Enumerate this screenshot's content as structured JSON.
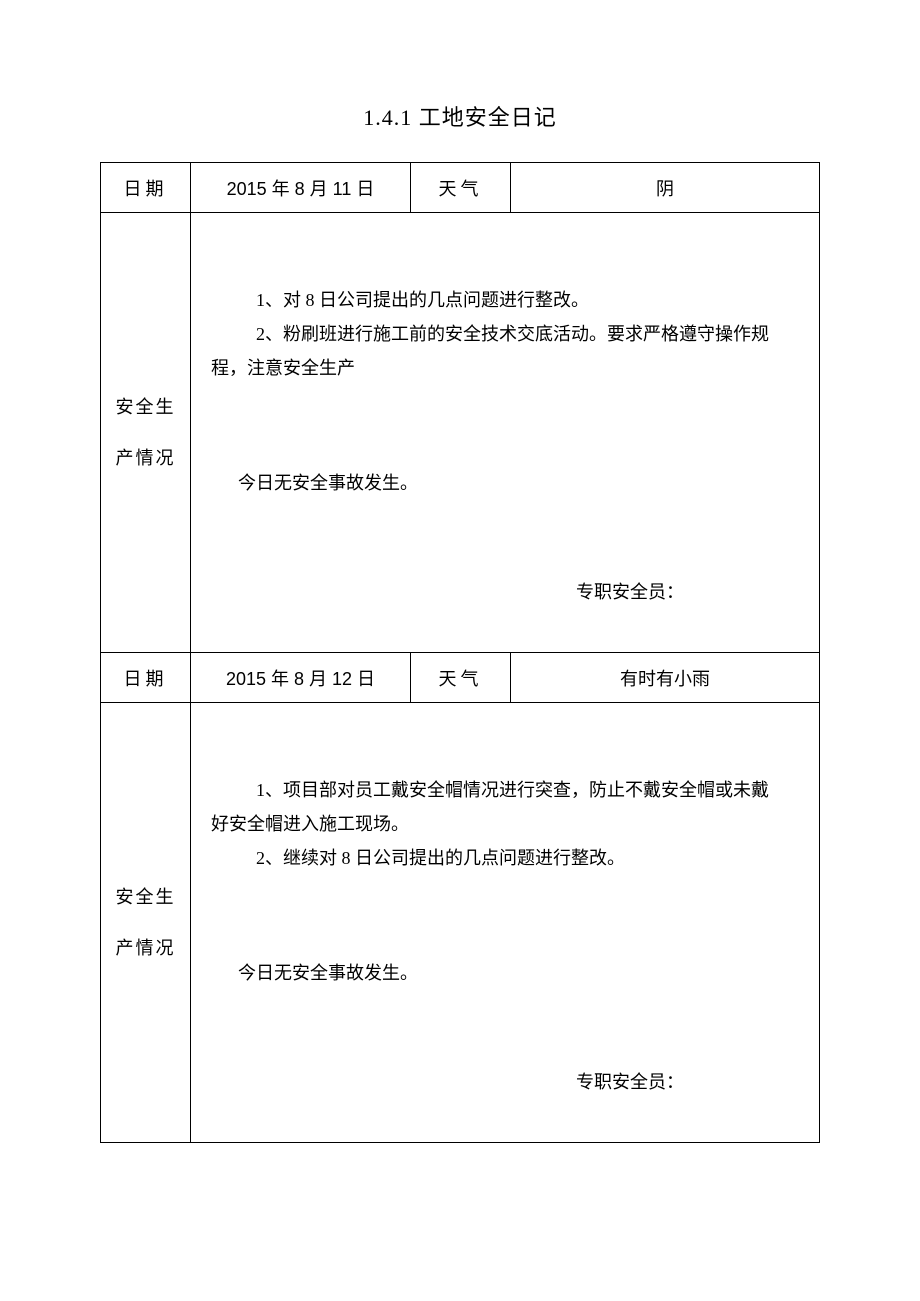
{
  "title": "1.4.1 工地安全日记",
  "entries": [
    {
      "date_label": "日期",
      "date_value": "2015 年 8 月 11 日",
      "weather_label": "天气",
      "weather_value": "阴",
      "section_label": "安全生产情况",
      "activity_line1": "1、对 8 日公司提出的几点问题进行整改。",
      "activity_line2": "2、粉刷班进行施工前的安全技术交底活动。要求严格遵守操作规",
      "activity_line3": "程，注意安全生产",
      "accident_status": "今日无安全事故发生。",
      "signature_label": "专职安全员："
    },
    {
      "date_label": "日期",
      "date_value": "2015 年 8 月 12 日",
      "weather_label": "天气",
      "weather_value": "有时有小雨",
      "section_label": "安全生产情况",
      "activity_line1": "1、项目部对员工戴安全帽情况进行突查，防止不戴安全帽或未戴",
      "activity_line2": "好安全帽进入施工现场。",
      "activity_line3": "2、继续对 8 日公司提出的几点问题进行整改。",
      "accident_status": "今日无安全事故发生。",
      "signature_label": "专职安全员："
    }
  ]
}
